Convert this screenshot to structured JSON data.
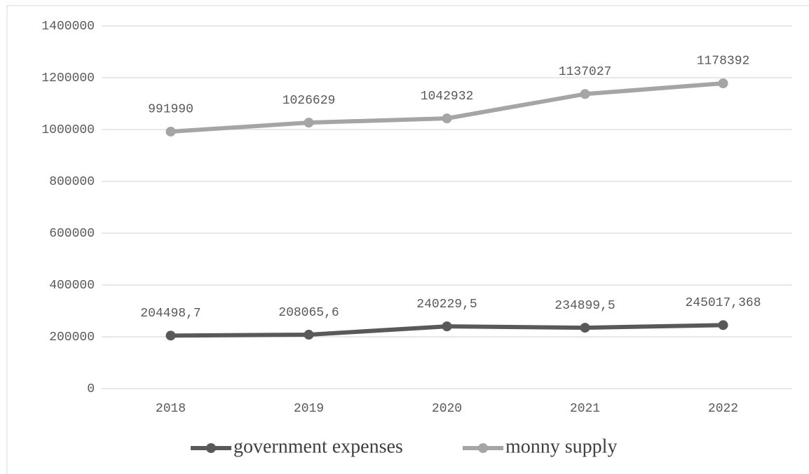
{
  "chart_data": {
    "type": "line",
    "categories": [
      "2018",
      "2019",
      "2020",
      "2021",
      "2022"
    ],
    "series": [
      {
        "name": "government expenses",
        "color": "#595959",
        "values": [
          204498.7,
          208065.6,
          240229.5,
          234899.5,
          245017.368
        ],
        "value_labels": [
          "204498,7",
          "208065,6",
          "240229,5",
          "234899,5",
          "245017,368"
        ]
      },
      {
        "name": "monny supply",
        "color": "#a5a5a5",
        "values": [
          991990,
          1026629,
          1042932,
          1137027,
          1178392
        ]
      }
    ],
    "ylim": [
      0,
      1400000
    ],
    "yticks": [
      0,
      200000,
      400000,
      600000,
      800000,
      1000000,
      1200000,
      1400000
    ],
    "grid": true,
    "legend": "bottom"
  }
}
